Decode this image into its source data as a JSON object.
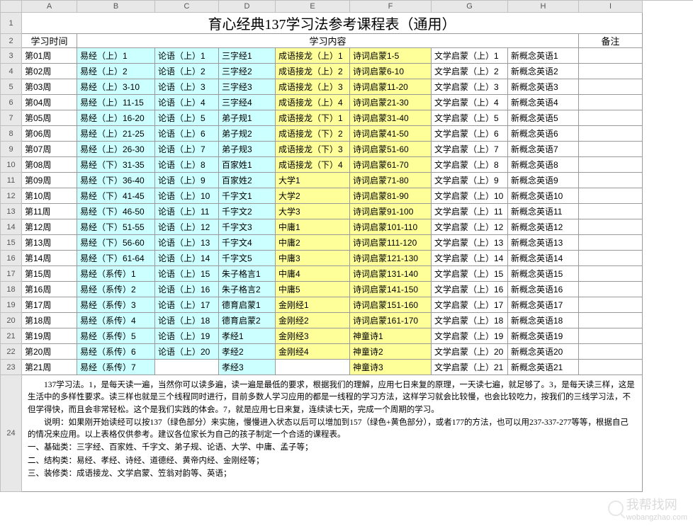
{
  "colLetters": [
    "",
    "A",
    "B",
    "C",
    "D",
    "E",
    "F",
    "G",
    "H",
    "I"
  ],
  "title": "育心经典137学习法参考课程表（通用）",
  "headers": {
    "time": "学习时间",
    "content": "学习内容",
    "note": "备注"
  },
  "colors": {
    "cyan": "#ccffff",
    "yellow": "#ffff99"
  },
  "rows": [
    {
      "w": "第01周",
      "c": [
        "易经（上）1",
        "论语（上）1",
        "三字经1",
        "成语接龙（上）1",
        "诗词启蒙1-5",
        "文学启蒙（上）1",
        "新概念英语1"
      ]
    },
    {
      "w": "第02周",
      "c": [
        "易经（上）2",
        "论语（上）2",
        "三字经2",
        "成语接龙（上）2",
        "诗词启蒙6-10",
        "文学启蒙（上）2",
        "新概念英语2"
      ]
    },
    {
      "w": "第03周",
      "c": [
        "易经（上）3-10",
        "论语（上）3",
        "三字经3",
        "成语接龙（上）3",
        "诗词启蒙11-20",
        "文学启蒙（上）3",
        "新概念英语3"
      ]
    },
    {
      "w": "第04周",
      "c": [
        "易经（上）11-15",
        "论语（上）4",
        "三字经4",
        "成语接龙（上）4",
        "诗词启蒙21-30",
        "文学启蒙（上）4",
        "新概念英语4"
      ]
    },
    {
      "w": "第05周",
      "c": [
        "易经（上）16-20",
        "论语（上）5",
        "弟子规1",
        "成语接龙（下）1",
        "诗词启蒙31-40",
        "文学启蒙（上）5",
        "新概念英语5"
      ]
    },
    {
      "w": "第06周",
      "c": [
        "易经（上）21-25",
        "论语（上）6",
        "弟子规2",
        "成语接龙（下）2",
        "诗词启蒙41-50",
        "文学启蒙（上）6",
        "新概念英语6"
      ]
    },
    {
      "w": "第07周",
      "c": [
        "易经（上）26-30",
        "论语（上）7",
        "弟子规3",
        "成语接龙（下）3",
        "诗词启蒙51-60",
        "文学启蒙（上）7",
        "新概念英语7"
      ]
    },
    {
      "w": "第08周",
      "c": [
        "易经（下）31-35",
        "论语（上）8",
        "百家姓1",
        "成语接龙（下）4",
        "诗词启蒙61-70",
        "文学启蒙（上）8",
        "新概念英语8"
      ]
    },
    {
      "w": "第09周",
      "c": [
        "易经（下）36-40",
        "论语（上）9",
        "百家姓2",
        "大学1",
        "诗词启蒙71-80",
        "文学启蒙（上）9",
        "新概念英语9"
      ]
    },
    {
      "w": "第10周",
      "c": [
        "易经（下）41-45",
        "论语（上）10",
        "千字文1",
        "大学2",
        "诗词启蒙81-90",
        "文学启蒙（上）10",
        "新概念英语10"
      ]
    },
    {
      "w": "第11周",
      "c": [
        "易经（下）46-50",
        "论语（上）11",
        "千字文2",
        "大学3",
        "诗词启蒙91-100",
        "文学启蒙（上）11",
        "新概念英语11"
      ]
    },
    {
      "w": "第12周",
      "c": [
        "易经（下）51-55",
        "论语（上）12",
        "千字文3",
        "中庸1",
        "诗词启蒙101-110",
        "文学启蒙（上）12",
        "新概念英语12"
      ]
    },
    {
      "w": "第13周",
      "c": [
        "易经（下）56-60",
        "论语（上）13",
        "千字文4",
        "中庸2",
        "诗词启蒙111-120",
        "文学启蒙（上）13",
        "新概念英语13"
      ]
    },
    {
      "w": "第14周",
      "c": [
        "易经（下）61-64",
        "论语（上）14",
        "千字文5",
        "中庸3",
        "诗词启蒙121-130",
        "文学启蒙（上）14",
        "新概念英语14"
      ]
    },
    {
      "w": "第15周",
      "c": [
        "易经（系传）1",
        "论语（上）15",
        "朱子格言1",
        "中庸4",
        "诗词启蒙131-140",
        "文学启蒙（上）15",
        "新概念英语15"
      ]
    },
    {
      "w": "第16周",
      "c": [
        "易经（系传）2",
        "论语（上）16",
        "朱子格言2",
        "中庸5",
        "诗词启蒙141-150",
        "文学启蒙（上）16",
        "新概念英语16"
      ]
    },
    {
      "w": "第17周",
      "c": [
        "易经（系传）3",
        "论语（上）17",
        "德育启蒙1",
        "金刚经1",
        "诗词启蒙151-160",
        "文学启蒙（上）17",
        "新概念英语17"
      ]
    },
    {
      "w": "第18周",
      "c": [
        "易经（系传）4",
        "论语（上）18",
        "德育启蒙2",
        "金刚经2",
        "诗词启蒙161-170",
        "文学启蒙（上）18",
        "新概念英语18"
      ]
    },
    {
      "w": "第19周",
      "c": [
        "易经（系传）5",
        "论语（上）19",
        "孝经1",
        "金刚经3",
        "神童诗1",
        "文学启蒙（上）19",
        "新概念英语19"
      ]
    },
    {
      "w": "第20周",
      "c": [
        "易经（系传）6",
        "论语（上）20",
        "孝经2",
        "金刚经4",
        "神童诗2",
        "文学启蒙（上）20",
        "新概念英语20"
      ]
    },
    {
      "w": "第21周",
      "c": [
        "易经（系传）7",
        "",
        "孝经3",
        "",
        "神童诗3",
        "文学启蒙（上）21",
        "新概念英语21"
      ]
    }
  ],
  "cyanCols": [
    0,
    1,
    2
  ],
  "yellowCols": [
    3,
    4
  ],
  "notes": [
    "137学习法。1，是每天读一遍，当然你可以读多遍，读一遍是最低的要求，根据我们的理解，应用七日来复的原理，一天读七遍，就足够了。3，是每天读三样，这是生活中的多样性要求。读三样也就是三个线程同时进行，目前多数人学习应用的都是一线程的学习方法，这样学习就会比较慢，也会比较吃力，按我们的三线学习法，不但学得快，而且会非常轻松。这个是我们实践的体会。7，就是应用七日来复，连续读七天，完成一个周期的学习。",
    "说明：如果刚开始读经可以按137（绿色部分）来实施，慢慢进入状态以后可以增加到157（绿色+黄色部分），或者177的方法，也可以用237-337-277等等，根据自己的情况来应用。以上表格仅供参考。建议各位家长为自己的孩子制定一个合适的课程表。",
    "一、基础类：三字经、百家姓、千字文、弟子规、论语、大学、中庸、孟子等；",
    "二、结构类：易经、孝经、诗经、道德经、黄帝内经、金刚经等；",
    "三、装修类：成语接龙、文学启蒙、笠翁对韵等、英语；"
  ],
  "watermark": {
    "cn": "我帮找网",
    "url": "wobangzhao.com"
  }
}
